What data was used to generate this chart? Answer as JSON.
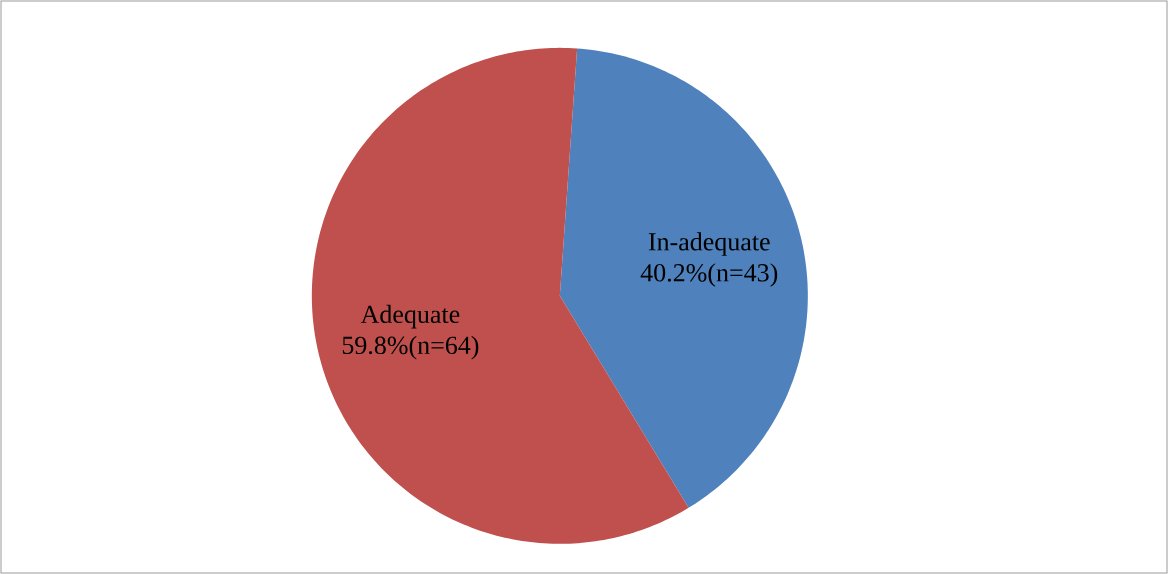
{
  "chart_data": {
    "type": "pie",
    "categories": [
      "In-adequate",
      "Adequate"
    ],
    "values": [
      40.2,
      59.8
    ],
    "value_labels": [
      "40.2%(n=43)",
      "59.8%(n=64)"
    ],
    "colors": [
      "#4f81bd",
      "#c0504d"
    ]
  }
}
